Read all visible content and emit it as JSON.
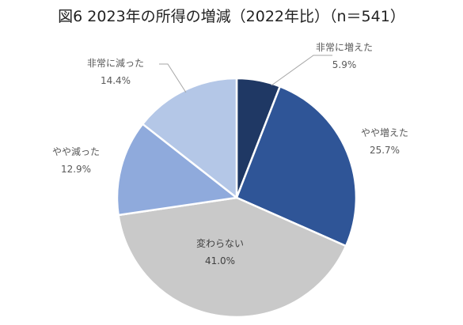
{
  "chart_data": {
    "type": "pie",
    "title": "図6 2023年の所得の増減（2022年比）（n＝541）",
    "slices": [
      {
        "label": "非常に増えた",
        "value": 5.9,
        "display": "5.9%",
        "color": "#1f3864"
      },
      {
        "label": "やや増えた",
        "value": 25.7,
        "display": "25.7%",
        "color": "#2f5597"
      },
      {
        "label": "変わらない",
        "value": 41.0,
        "display": "41.0%",
        "color": "#c9c9c9"
      },
      {
        "label": "やや減った",
        "value": 12.9,
        "display": "12.9%",
        "color": "#8faadc"
      },
      {
        "label": "非常に減った",
        "value": 14.4,
        "display": "14.4%",
        "color": "#b4c7e7"
      }
    ],
    "start_angle_deg": 0,
    "direction": "clockwise",
    "legend": "none"
  }
}
